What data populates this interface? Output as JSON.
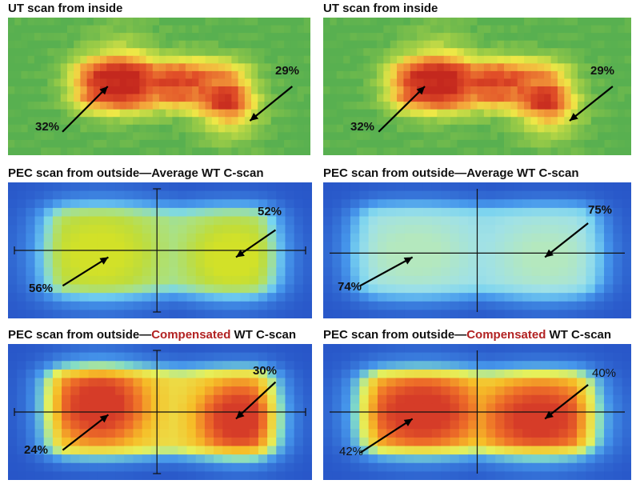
{
  "panels": [
    {
      "title": "UT scan from inside",
      "title_parts": [
        "UT scan from inside"
      ],
      "colormap": "ut",
      "labels": [
        "32%",
        "29%"
      ]
    },
    {
      "title": "UT scan from inside",
      "title_parts": [
        "UT scan from inside"
      ],
      "colormap": "ut",
      "labels": [
        "32%",
        "29%"
      ]
    },
    {
      "title": "PEC scan from outside—Average WT C-scan",
      "title_parts": [
        "PEC scan from outside—Average WT C-scan"
      ],
      "colormap": "pec-average",
      "labels": [
        "56%",
        "52%"
      ]
    },
    {
      "title": "PEC scan from outside—Average WT C-scan",
      "title_parts": [
        "PEC scan from outside—Average WT C-scan"
      ],
      "colormap": "pec-average",
      "labels": [
        "74%",
        "75%"
      ]
    },
    {
      "title": "PEC scan from outside—Compensated WT C-scan",
      "title_parts": [
        "PEC scan from outside—",
        "Compensated",
        " WT C-scan"
      ],
      "colormap": "pec-compensated",
      "labels": [
        "24%",
        "30%"
      ]
    },
    {
      "title": "PEC scan from outside—Compensated WT C-scan",
      "title_parts": [
        "PEC scan from outside—",
        "Compensated",
        " WT C-scan"
      ],
      "colormap": "pec-compensated",
      "labels": [
        "42%",
        "40%"
      ]
    }
  ],
  "colors": {
    "highlight_word": "#b22222",
    "ut_background": "#4caf50",
    "pec_background": "#2a5cc8",
    "arrow": "#000000"
  }
}
